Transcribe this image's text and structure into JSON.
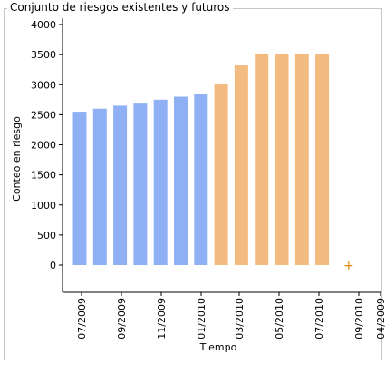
{
  "panel": {
    "title": "Conjunto de riesgos existentes y futuros"
  },
  "chart_data": {
    "type": "bar",
    "xlabel": "Tiempo",
    "ylabel": "Conteo en riesgo",
    "ylim": [
      0,
      4000
    ],
    "yticks": [
      0,
      500,
      1000,
      1500,
      2000,
      2500,
      3000,
      3500,
      4000
    ],
    "x_tick_labels": [
      "07/2009",
      "09/2009",
      "11/2009",
      "01/2010",
      "03/2010",
      "05/2010",
      "07/2010",
      "09/2010",
      "04/2009"
    ],
    "series": [
      {
        "name": "",
        "color": "#8fb0f5",
        "values": [
          2550,
          2600,
          2650,
          2700,
          2750,
          2800,
          2850
        ]
      },
      {
        "name": "",
        "color": "#f3bb80",
        "values": [
          3020,
          3320,
          3510,
          3510,
          3510,
          3510
        ]
      }
    ],
    "marker": {
      "symbol": "+",
      "value": 0,
      "color": "#e08a00"
    },
    "grid": false,
    "legend": "none"
  }
}
